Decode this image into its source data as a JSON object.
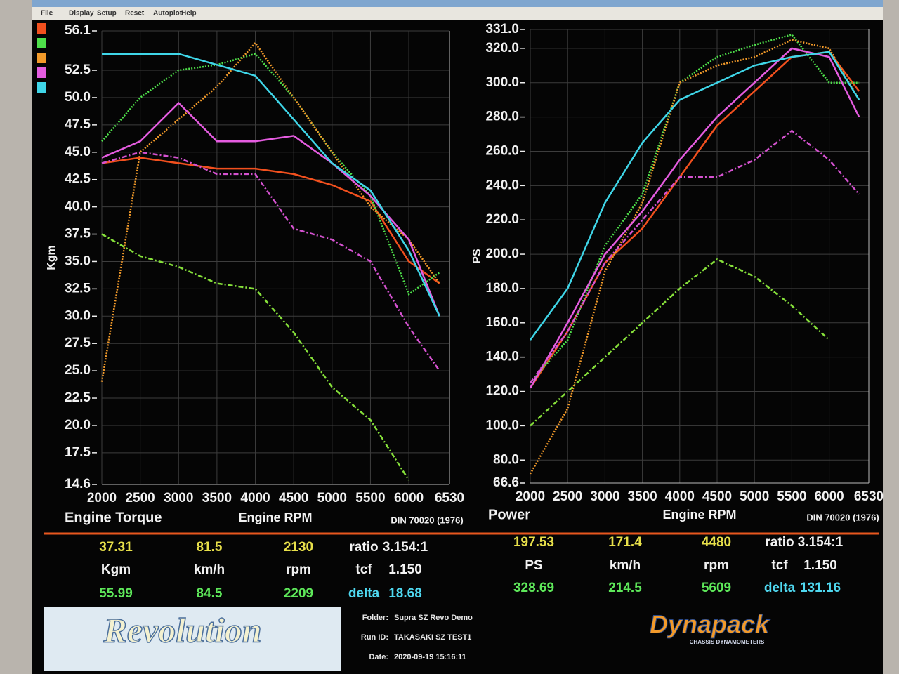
{
  "menu": [
    "File",
    "Display",
    "Setup",
    "Reset",
    "Autoplot",
    "Help"
  ],
  "chart_data": [
    {
      "type": "line",
      "title": "Engine Torque",
      "xlabel": "Engine RPM",
      "ylabel": "Kgm",
      "note": "DIN 70020 (1976)",
      "grid": true,
      "x": [
        2000,
        2500,
        3000,
        3500,
        4000,
        4500,
        5000,
        5500,
        6000,
        6400
      ],
      "xlim": [
        2000,
        6530
      ],
      "xticks": [
        2000,
        2500,
        3000,
        3500,
        4000,
        4500,
        5000,
        5500,
        6000,
        6530
      ],
      "ylim": [
        14.6,
        56.1
      ],
      "yticks": [
        14.6,
        17.5,
        {
          "value": 20,
          "label": "20.0"
        },
        22.5,
        {
          "value": 25,
          "label": "25.0"
        },
        27.5,
        {
          "value": 30,
          "label": "30.0"
        },
        32.5,
        {
          "value": 35,
          "label": "35.0"
        },
        37.5,
        {
          "value": 40,
          "label": "40.0"
        },
        42.5,
        {
          "value": 45,
          "label": "45.0"
        },
        47.5,
        {
          "value": 50,
          "label": "50.0"
        },
        52.5,
        56.1
      ],
      "series": [
        {
          "color": "#f2501e",
          "style": "solid",
          "values": [
            44,
            44.5,
            44,
            43.5,
            43.5,
            43,
            42,
            40.5,
            35,
            33
          ]
        },
        {
          "color": "#4ee04a",
          "style": "dotted",
          "values": [
            46,
            50,
            52.5,
            53,
            54,
            50,
            45,
            41,
            32,
            34
          ]
        },
        {
          "color": "#f29a2a",
          "style": "dotted",
          "values": [
            24,
            45,
            48,
            51,
            55,
            50,
            45,
            40,
            37,
            33
          ]
        },
        {
          "color": "#e55ce0",
          "style": "solid",
          "values": [
            44.5,
            46,
            49.5,
            46,
            46,
            46.5,
            44,
            41,
            37,
            30
          ]
        },
        {
          "color": "#3fd6e8",
          "style": "solid",
          "values": [
            54,
            54,
            54,
            53,
            52,
            48,
            44,
            41.5,
            36,
            30
          ]
        },
        {
          "color": "#d552d0",
          "style": "dashdot",
          "values": [
            44,
            45,
            44.5,
            43,
            43,
            38,
            37,
            35,
            29,
            25
          ]
        },
        {
          "color": "#86e03a",
          "style": "dashdot",
          "values": [
            37.5,
            35.5,
            34.5,
            33,
            32.5,
            28.5,
            23.5,
            20.5,
            15,
            null
          ]
        }
      ]
    },
    {
      "type": "line",
      "title": "Power",
      "xlabel": "Engine RPM",
      "ylabel": "PS",
      "note": "DIN 70020 (1976)",
      "grid": true,
      "x": [
        2000,
        2500,
        3000,
        3500,
        4000,
        4500,
        5000,
        5500,
        6000,
        6400
      ],
      "xlim": [
        2000,
        6530
      ],
      "xticks": [
        2000,
        2500,
        3000,
        3500,
        4000,
        4500,
        5000,
        5500,
        6000,
        6530
      ],
      "ylim": [
        66.6,
        331
      ],
      "yticks": [
        66.6,
        {
          "value": 80,
          "label": "80.0"
        },
        {
          "value": 100,
          "label": "100.0"
        },
        {
          "value": 120,
          "label": "120.0"
        },
        {
          "value": 140,
          "label": "140.0"
        },
        {
          "value": 160,
          "label": "160.0"
        },
        {
          "value": 180,
          "label": "180.0"
        },
        {
          "value": 200,
          "label": "200.0"
        },
        {
          "value": 220,
          "label": "220.0"
        },
        {
          "value": 240,
          "label": "240.0"
        },
        {
          "value": 260,
          "label": "260.0"
        },
        {
          "value": 280,
          "label": "280.0"
        },
        {
          "value": 300,
          "label": "300.0"
        },
        {
          "value": 320,
          "label": "320.0"
        },
        {
          "value": 331,
          "label": "331.0"
        }
      ],
      "series": [
        {
          "color": "#f2501e",
          "style": "solid",
          "values": [
            122,
            155,
            195,
            215,
            245,
            275,
            295,
            315,
            318,
            295
          ]
        },
        {
          "color": "#4ee04a",
          "style": "dotted",
          "values": [
            125,
            150,
            205,
            235,
            300,
            315,
            322,
            328,
            300,
            300
          ]
        },
        {
          "color": "#f29a2a",
          "style": "dotted",
          "values": [
            72,
            110,
            190,
            230,
            300,
            310,
            315,
            325,
            320,
            290
          ]
        },
        {
          "color": "#e55ce0",
          "style": "solid",
          "values": [
            122,
            160,
            200,
            225,
            255,
            280,
            300,
            320,
            315,
            280
          ]
        },
        {
          "color": "#3fd6e8",
          "style": "solid",
          "values": [
            150,
            180,
            230,
            265,
            290,
            300,
            310,
            315,
            318,
            290
          ]
        },
        {
          "color": "#d552d0",
          "style": "dashdot",
          "values": [
            125,
            155,
            195,
            220,
            245,
            245,
            255,
            272,
            255,
            235
          ]
        },
        {
          "color": "#86e03a",
          "style": "dashdot",
          "values": [
            100,
            120,
            140,
            160,
            180,
            197,
            187,
            170,
            150,
            null
          ]
        }
      ]
    }
  ],
  "readouts": [
    {
      "rows": [
        [
          "37.31",
          "81.5",
          "2130",
          "ratio",
          "3.154:1"
        ],
        [
          "Kgm",
          "km/h",
          "rpm",
          "tcf",
          "1.150"
        ],
        [
          "55.99",
          "84.5",
          "2209",
          "delta",
          "18.68"
        ]
      ]
    },
    {
      "rows": [
        [
          "197.53",
          "171.4",
          "4480",
          "ratio",
          "3.154:1"
        ],
        [
          "PS",
          "km/h",
          "rpm",
          "tcf",
          "1.150"
        ],
        [
          "328.69",
          "214.5",
          "5609",
          "delta",
          "131.16"
        ]
      ]
    }
  ],
  "footer": {
    "logo": "Revolution",
    "brand": "Dynapack",
    "brand_sub": "CHASSIS DYNAMOMETERS",
    "info": [
      [
        "Folder:",
        "Supra SZ Revo Demo"
      ],
      [
        "Run ID:",
        "TAKASAKI SZ TEST1"
      ],
      [
        "Date:",
        "2020-09-19 15:16:11"
      ]
    ]
  }
}
